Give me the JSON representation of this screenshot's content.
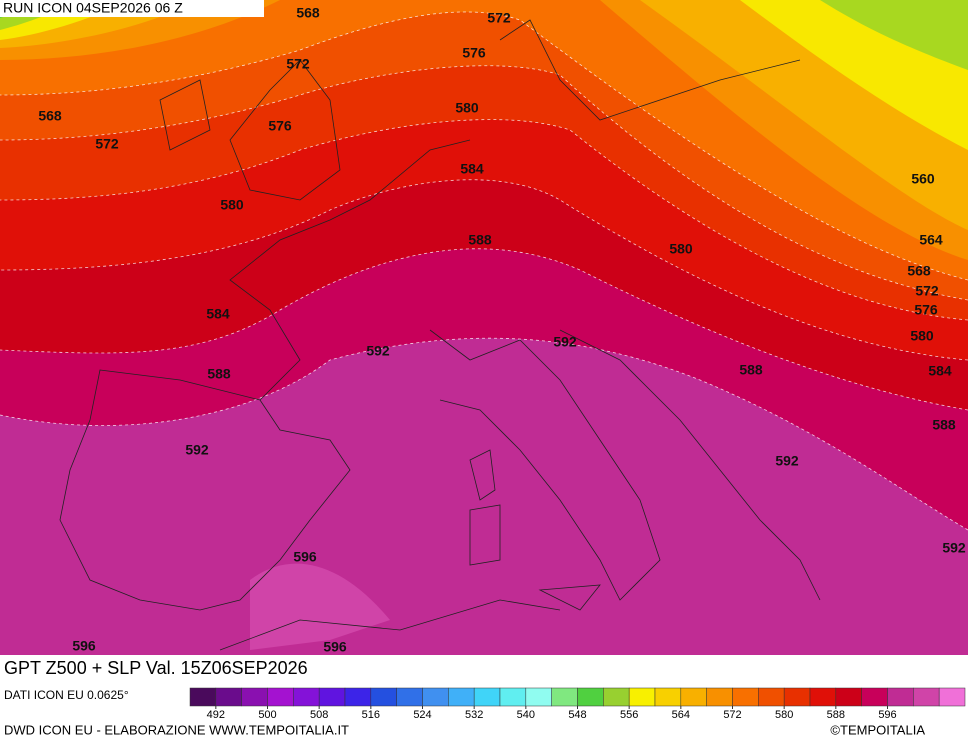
{
  "header": {
    "run": "RUN ICON 04SEP2026 06 Z"
  },
  "map": {
    "contour_labels": [
      568,
      572,
      572,
      568,
      572,
      576,
      576,
      580,
      584,
      580,
      560,
      564,
      568,
      572,
      576,
      580,
      584,
      588,
      592,
      588,
      580,
      584,
      588,
      592,
      592,
      588,
      592,
      592,
      596,
      596,
      596
    ]
  },
  "footer": {
    "title": "GPT Z500 + SLP Val. 15Z06SEP2026",
    "source": "DATI ICON EU 0.0625°",
    "credit": "DWD ICON EU - ELABORAZIONE WWW.TEMPOITALIA.IT",
    "copyright": "©TEMPOITALIA"
  },
  "legend": {
    "range": [
      488,
      608
    ],
    "ticks": [
      492,
      500,
      508,
      516,
      524,
      532,
      540,
      548,
      556,
      564,
      572,
      580,
      588,
      596
    ],
    "colors": [
      "#4a0a5c",
      "#6a0c8c",
      "#8a10b0",
      "#a412d0",
      "#8412d8",
      "#6014e0",
      "#3c24e8",
      "#2450e0",
      "#3070e8",
      "#4090f0",
      "#40b0f8",
      "#40d4f8",
      "#60eef0",
      "#90fcf0",
      "#80e880",
      "#50d040",
      "#98d030",
      "#f8f000",
      "#f8d000",
      "#f8b000",
      "#f89000",
      "#f87000",
      "#f05000",
      "#e83000",
      "#e01008",
      "#cc0018",
      "#c8005a",
      "#c02c94",
      "#d044a8",
      "#f070d8"
    ]
  }
}
